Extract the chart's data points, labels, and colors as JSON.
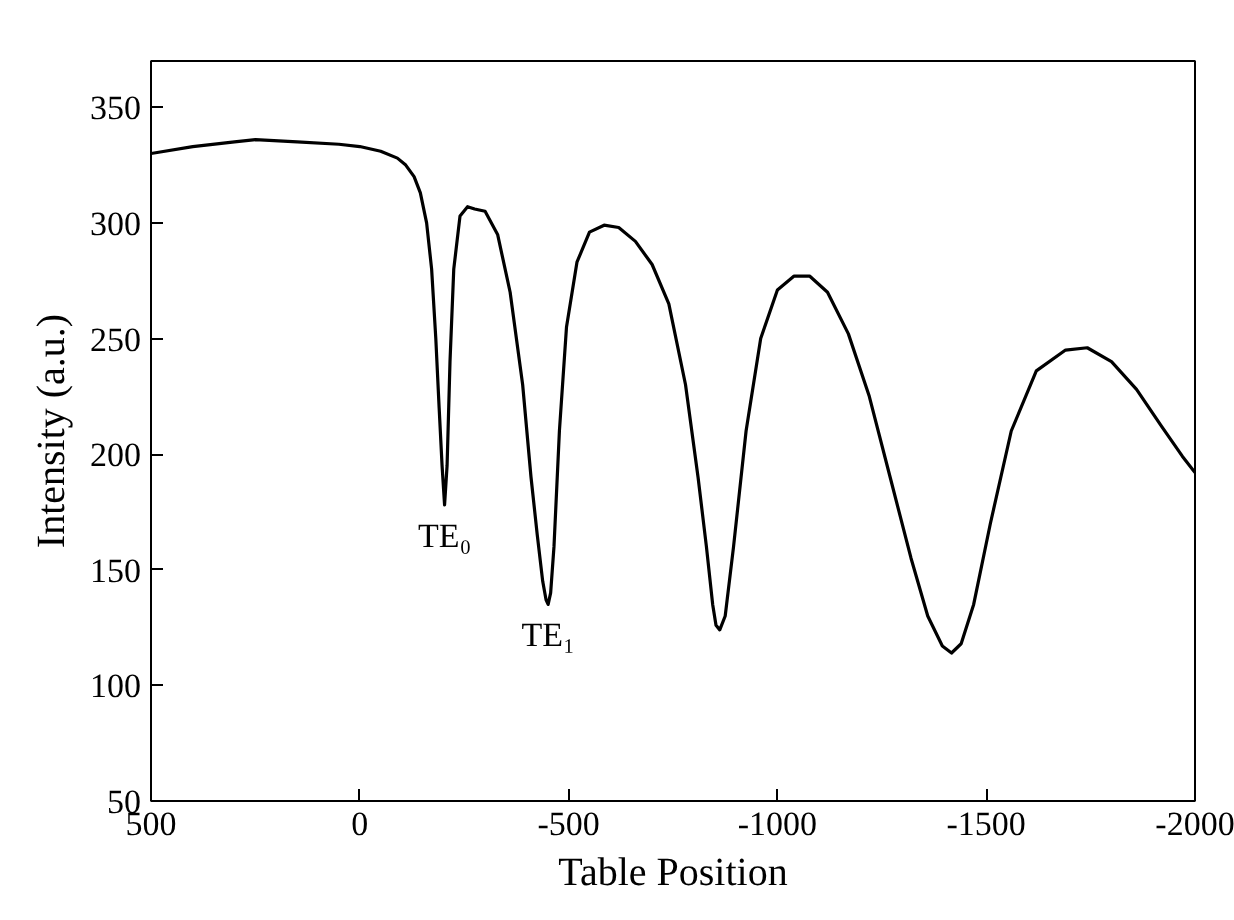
{
  "chart_data": {
    "type": "line",
    "xlabel": "Table Position",
    "ylabel": "Intensity (a.u.)",
    "xlim": [
      500,
      -2000
    ],
    "xticks": [
      500,
      0,
      -500,
      -1000,
      -1500,
      -2000
    ],
    "ylim": [
      50,
      370
    ],
    "yticks": [
      50,
      100,
      150,
      200,
      250,
      300,
      350
    ],
    "grid": false,
    "marker": "none",
    "line_style": "solid",
    "annotations": [
      {
        "text": "TE₀",
        "x": -203,
        "y": 178
      },
      {
        "text": "TE₁",
        "x": -451,
        "y": 135
      }
    ],
    "series": [
      {
        "color": "#000000",
        "x": [
          500,
          400,
          300,
          250,
          150,
          50,
          0,
          -50,
          -90,
          -110,
          -130,
          -145,
          -160,
          -172,
          -182,
          -190,
          -197,
          -203,
          -209,
          -216,
          -225,
          -240,
          -258,
          -275,
          -300,
          -330,
          -360,
          -390,
          -410,
          -425,
          -438,
          -446,
          -451,
          -457,
          -465,
          -478,
          -495,
          -520,
          -550,
          -585,
          -620,
          -660,
          -700,
          -740,
          -780,
          -810,
          -830,
          -845,
          -853,
          -862,
          -875,
          -895,
          -925,
          -960,
          -1000,
          -1040,
          -1077,
          -1120,
          -1170,
          -1220,
          -1270,
          -1320,
          -1360,
          -1395,
          -1417,
          -1440,
          -1470,
          -1510,
          -1560,
          -1620,
          -1690,
          -1742,
          -1800,
          -1860,
          -1920,
          -1970,
          -2000
        ],
        "values": [
          330,
          333,
          335,
          336,
          335,
          334,
          333,
          331,
          328,
          325,
          320,
          313,
          300,
          280,
          250,
          220,
          195,
          178,
          195,
          240,
          280,
          303,
          307,
          306,
          305,
          295,
          270,
          230,
          190,
          165,
          145,
          137,
          135,
          140,
          160,
          210,
          255,
          283,
          296,
          299,
          298,
          292,
          282,
          265,
          230,
          190,
          160,
          135,
          126,
          124,
          130,
          160,
          210,
          250,
          271,
          277,
          277,
          270,
          252,
          225,
          190,
          155,
          130,
          117,
          114,
          118,
          135,
          170,
          210,
          236,
          245,
          246,
          240,
          228,
          212,
          199,
          192
        ]
      }
    ]
  }
}
